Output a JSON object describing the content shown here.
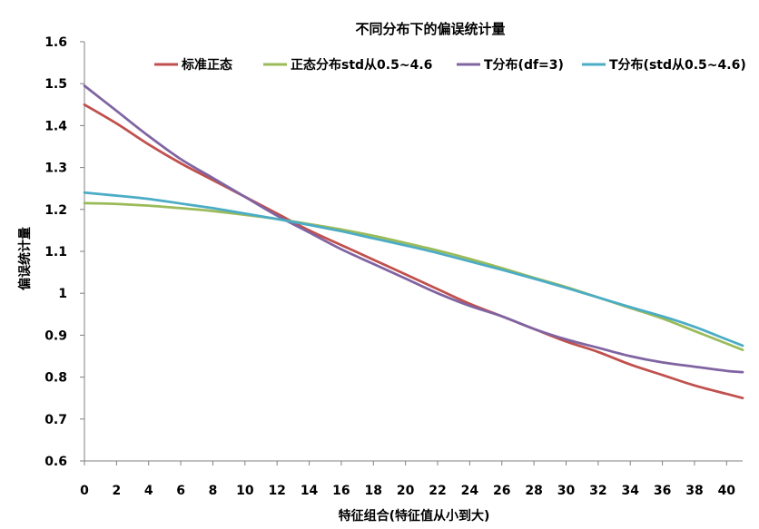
{
  "chart_data": {
    "type": "line",
    "title": "不同分布下的偏误统计量",
    "xlabel": "特征组合(特征值从小到大)",
    "ylabel": "偏误统计量",
    "xlim": [
      0,
      41
    ],
    "ylim": [
      0.6,
      1.6
    ],
    "xticks": [
      0,
      2,
      4,
      6,
      8,
      10,
      12,
      14,
      16,
      18,
      20,
      22,
      24,
      26,
      28,
      30,
      32,
      34,
      36,
      38,
      40
    ],
    "yticks": [
      "0.6",
      "0.7",
      "0.8",
      "0.9",
      "1",
      "1.1",
      "1.2",
      "1.3",
      "1.4",
      "1.5",
      "1.6"
    ],
    "grid": false,
    "legend_position": "top",
    "x": [
      0,
      2,
      4,
      6,
      8,
      10,
      12,
      14,
      16,
      18,
      20,
      22,
      24,
      26,
      28,
      30,
      32,
      34,
      36,
      38,
      40,
      41
    ],
    "series": [
      {
        "name": "标准正态",
        "color": "#c0504d",
        "values": [
          1.45,
          1.405,
          1.355,
          1.31,
          1.27,
          1.23,
          1.19,
          1.15,
          1.115,
          1.08,
          1.045,
          1.01,
          0.975,
          0.945,
          0.915,
          0.885,
          0.86,
          0.83,
          0.805,
          0.78,
          0.76,
          0.75
        ]
      },
      {
        "name": "正态分布std从0.5~4.6",
        "color": "#9bbb59",
        "values": [
          1.215,
          1.213,
          1.209,
          1.203,
          1.196,
          1.187,
          1.177,
          1.165,
          1.152,
          1.137,
          1.12,
          1.102,
          1.082,
          1.06,
          1.037,
          1.015,
          0.99,
          0.965,
          0.94,
          0.91,
          0.88,
          0.865
        ]
      },
      {
        "name": "T分布(df=3)",
        "color": "#8064a2",
        "values": [
          1.495,
          1.435,
          1.375,
          1.32,
          1.275,
          1.23,
          1.185,
          1.145,
          1.105,
          1.07,
          1.035,
          1.0,
          0.97,
          0.945,
          0.915,
          0.89,
          0.87,
          0.85,
          0.835,
          0.825,
          0.815,
          0.812
        ]
      },
      {
        "name": "T分布(std从0.5~4.6)",
        "color": "#4bacc6",
        "values": [
          1.24,
          1.233,
          1.225,
          1.214,
          1.203,
          1.19,
          1.177,
          1.163,
          1.148,
          1.131,
          1.114,
          1.096,
          1.076,
          1.056,
          1.035,
          1.013,
          0.99,
          0.967,
          0.945,
          0.92,
          0.89,
          0.875
        ]
      }
    ]
  }
}
